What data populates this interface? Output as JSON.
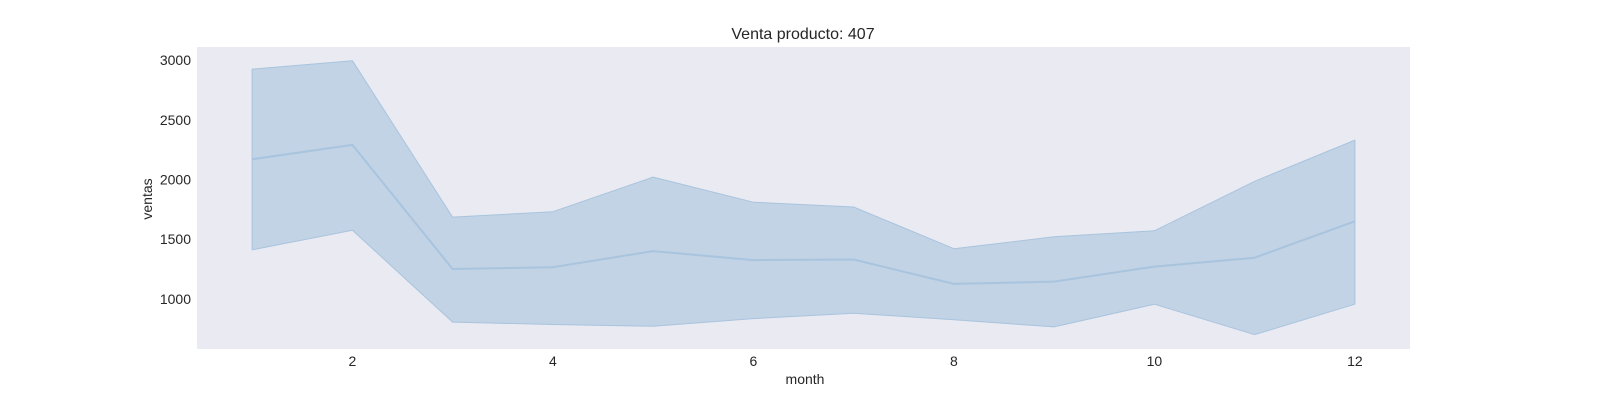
{
  "chart_data": {
    "type": "area",
    "title": "Venta producto: 407",
    "xlabel": "month",
    "ylabel": "ventas",
    "xlim": [
      0.45,
      12.55
    ],
    "ylim": [
      580,
      3110
    ],
    "xticks": [
      2,
      4,
      6,
      8,
      10,
      12
    ],
    "yticks": [
      1000,
      1500,
      2000,
      2500,
      3000
    ],
    "grid": false,
    "colors": {
      "plot_background": "#eaeaf2",
      "line": "#a9c4de",
      "band": "#c1d3e4",
      "band_edge": "#a9c4de"
    },
    "series": [
      {
        "x": [
          1,
          2,
          3,
          4,
          5,
          6,
          7,
          8,
          9,
          10,
          11,
          12
        ],
        "mean": [
          2170,
          2290,
          1250,
          1265,
          1400,
          1325,
          1330,
          1125,
          1145,
          1270,
          1345,
          1650
        ],
        "upper": [
          2925,
          2995,
          1685,
          1730,
          2020,
          1810,
          1770,
          1420,
          1520,
          1570,
          1985,
          2330
        ],
        "lower": [
          1410,
          1575,
          805,
          785,
          770,
          835,
          880,
          825,
          765,
          955,
          700,
          955
        ]
      }
    ]
  }
}
